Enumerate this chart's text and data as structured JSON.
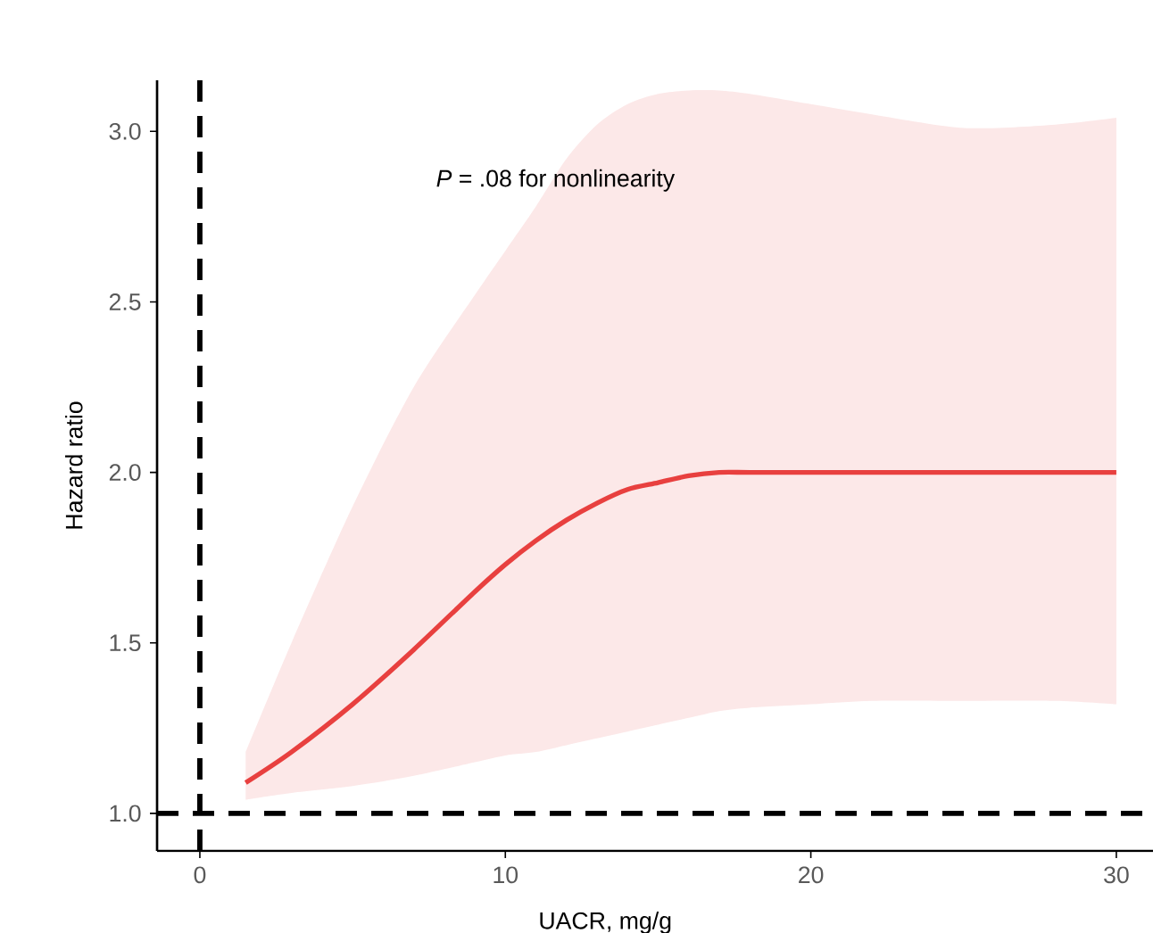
{
  "chart_data": {
    "type": "line",
    "xlabel": "UACR, mg/g",
    "ylabel": "Hazard ratio",
    "annotations": [
      "*P* = .08 for nonlinearity"
    ],
    "xlim": [
      -1.4,
      31.2
    ],
    "ylim": [
      0.89,
      3.15
    ],
    "xticks": [
      0,
      10,
      20,
      30
    ],
    "yticks": [
      {
        "value": 1,
        "label": "1.0"
      },
      1.5,
      {
        "value": 2,
        "label": "2.0"
      },
      2.5,
      {
        "value": 3,
        "label": "3.0"
      }
    ],
    "ref_lines": [
      {
        "axis": "x",
        "value": 0,
        "line_style": "dashed",
        "color": "#000000"
      },
      {
        "axis": "y",
        "value": 1.0,
        "line_style": "dashed",
        "color": "#000000"
      }
    ],
    "series": [
      {
        "color": "#e8403f",
        "x": [
          1.5,
          3,
          5,
          7,
          9,
          10,
          11,
          12,
          13,
          14,
          15,
          16,
          17,
          18,
          20,
          22,
          25,
          28,
          30
        ],
        "values": [
          1.09,
          1.18,
          1.32,
          1.48,
          1.65,
          1.73,
          1.8,
          1.86,
          1.91,
          1.95,
          1.97,
          1.99,
          2.0,
          2.0,
          2.0,
          2.0,
          2.0,
          2.0,
          2.0
        ],
        "lower": [
          1.04,
          1.06,
          1.08,
          1.11,
          1.15,
          1.17,
          1.18,
          1.2,
          1.22,
          1.24,
          1.26,
          1.28,
          1.3,
          1.31,
          1.32,
          1.33,
          1.33,
          1.33,
          1.32
        ],
        "upper": [
          1.18,
          1.5,
          1.9,
          2.25,
          2.52,
          2.65,
          2.78,
          2.92,
          3.02,
          3.08,
          3.11,
          3.12,
          3.12,
          3.11,
          3.08,
          3.05,
          3.01,
          3.02,
          3.04
        ]
      }
    ],
    "grid": false,
    "marker": "none",
    "line_style": "solid"
  }
}
